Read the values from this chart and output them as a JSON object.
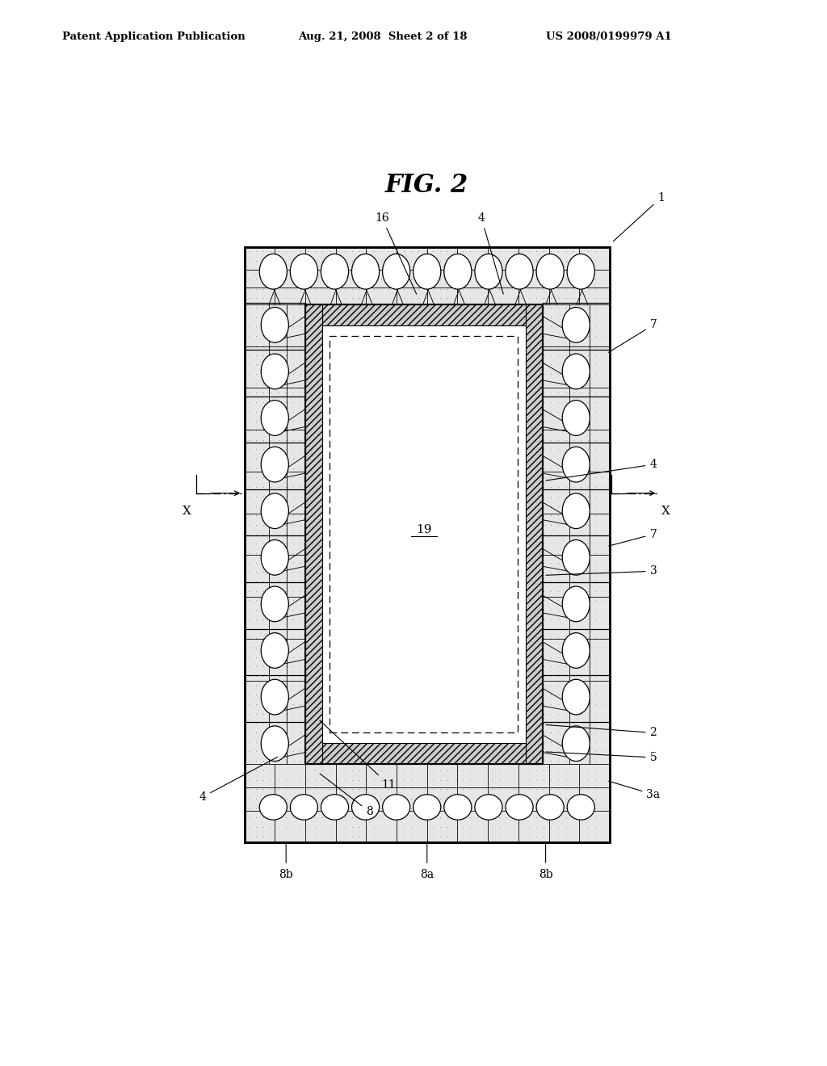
{
  "title": "FIG. 2",
  "header_left": "Patent Application Publication",
  "header_center": "Aug. 21, 2008  Sheet 2 of 18",
  "header_right": "US 2008/0199979 A1",
  "bg": "#ffffff",
  "OL": 0.22,
  "OR": 0.79,
  "OB": 0.13,
  "OT": 0.855,
  "IL": 0.315,
  "IR": 0.685,
  "IB": 0.225,
  "IT": 0.785,
  "HL": 0.03,
  "dot_color": "#aaaaaa",
  "circle_color": "#ffffff",
  "hatch_color": "#bbbbbb"
}
